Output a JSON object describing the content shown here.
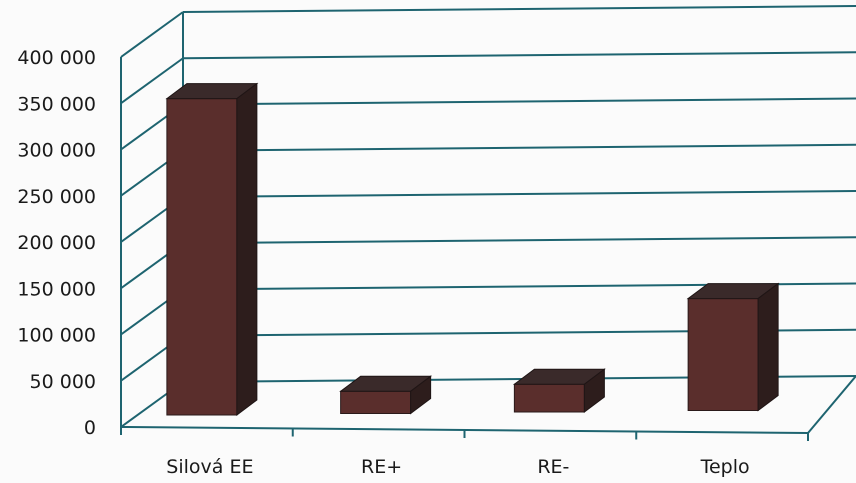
{
  "chart_data": {
    "type": "bar",
    "categories": [
      "Silová EE",
      "RE+",
      "RE-",
      "Teplo"
    ],
    "values": [
      342000,
      24000,
      30000,
      121000
    ],
    "title": "",
    "xlabel": "",
    "ylabel": "",
    "ylim": [
      0,
      400000
    ],
    "y_ticks": [
      "0",
      "50 000",
      "100 000",
      "150 000",
      "200 000",
      "250 000",
      "300 000",
      "350 000",
      "400 000"
    ],
    "grid": true,
    "style": "3d-column",
    "colors": {
      "bar_front": "#5a2e2c",
      "bar_top": "#3a2a2a",
      "bar_side": "#2d1d1c",
      "grid": "#1e6470",
      "text": "#1a1a1a"
    }
  }
}
